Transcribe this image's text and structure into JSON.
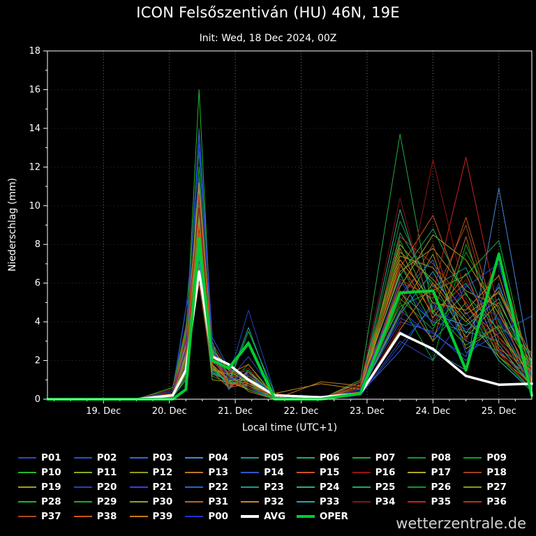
{
  "watermark": "wetterzentrale.de",
  "chart_data": {
    "type": "line",
    "title": "ICON Felsőszentiván (HU) 46N, 19E",
    "subtitle": "Init: Wed, 18 Dec 2024, 00Z",
    "xlabel": "Local time (UTC+1)",
    "ylabel": "Niederschlag (mm)",
    "ylim": [
      0,
      18
    ],
    "yticks": [
      0,
      2,
      4,
      6,
      8,
      10,
      12,
      14,
      16,
      18
    ],
    "x_domain_days": [
      0.15,
      7.5
    ],
    "xticks": [
      {
        "day": 1,
        "label": "19. Dec"
      },
      {
        "day": 2,
        "label": "20. Dec"
      },
      {
        "day": 3,
        "label": "21. Dec"
      },
      {
        "day": 4,
        "label": "22. Dec"
      },
      {
        "day": 5,
        "label": "23. Dec"
      },
      {
        "day": 6,
        "label": "24. Dec"
      },
      {
        "day": 7,
        "label": "25. Dec"
      }
    ],
    "grid": true,
    "legend_position": "bottom",
    "x_days": [
      0.15,
      1.5,
      2.05,
      2.25,
      2.45,
      2.65,
      2.9,
      3.2,
      3.6,
      4.3,
      4.9,
      5.5,
      6.0,
      6.5,
      7.0,
      7.5
    ],
    "series": [
      {
        "name": "P01",
        "color": "#3344bb",
        "width": 1,
        "values": [
          0,
          0,
          0.2,
          2.5,
          9.0,
          2.0,
          1.0,
          2.2,
          0.3,
          0,
          0.2,
          3.0,
          2.0,
          4.5,
          2.0,
          0.5
        ]
      },
      {
        "name": "P02",
        "color": "#2255cc",
        "width": 1,
        "values": [
          0,
          0,
          0.5,
          4.7,
          7.5,
          1.5,
          0.8,
          1.0,
          0.2,
          0,
          0.5,
          4.0,
          3.5,
          2.0,
          4.5,
          1.0
        ]
      },
      {
        "name": "P03",
        "color": "#3366dd",
        "width": 1,
        "values": [
          0,
          0,
          0.3,
          3.0,
          13.8,
          2.5,
          1.2,
          0.5,
          0,
          0,
          0.3,
          2.5,
          5.0,
          3.0,
          2.5,
          0.8
        ]
      },
      {
        "name": "P04",
        "color": "#4488dd",
        "width": 1,
        "values": [
          0,
          0,
          0.2,
          2.0,
          10.5,
          3.0,
          0.5,
          1.5,
          0.1,
          0,
          0.4,
          3.5,
          2.5,
          1.5,
          10.9,
          1.5
        ]
      },
      {
        "name": "P05",
        "color": "#229999",
        "width": 1,
        "values": [
          0,
          0,
          0.4,
          1.5,
          8.0,
          2.2,
          1.5,
          2.8,
          0.2,
          0,
          0.6,
          5.5,
          4.0,
          3.5,
          3.0,
          1.0
        ]
      },
      {
        "name": "P06",
        "color": "#22aa77",
        "width": 1,
        "values": [
          0,
          0,
          0.1,
          1.0,
          9.5,
          1.8,
          0.6,
          1.2,
          0.3,
          0,
          0.8,
          6.5,
          3.0,
          5.0,
          2.0,
          0.4
        ]
      },
      {
        "name": "P07",
        "color": "#22aa44",
        "width": 1,
        "values": [
          0,
          0,
          0.3,
          2.2,
          11.0,
          2.8,
          1.0,
          0.6,
          0.1,
          0,
          1.0,
          13.7,
          4.5,
          6.0,
          3.5,
          1.2
        ]
      },
      {
        "name": "P08",
        "color": "#119933",
        "width": 1,
        "values": [
          0,
          0,
          0.5,
          3.5,
          6.5,
          1.2,
          0.8,
          1.8,
          0.2,
          0,
          0.5,
          9.2,
          5.5,
          4.0,
          2.8,
          0.6
        ]
      },
      {
        "name": "P09",
        "color": "#00aa22",
        "width": 1,
        "values": [
          0,
          0,
          0.2,
          1.8,
          12.0,
          2.0,
          1.4,
          0.9,
          0,
          0,
          0.3,
          5.0,
          2.0,
          8.0,
          4.0,
          0.9
        ]
      },
      {
        "name": "P10",
        "color": "#22bb22",
        "width": 1,
        "values": [
          0,
          0,
          0.4,
          2.8,
          16.0,
          2.4,
          0.7,
          1.1,
          0.2,
          0,
          0.6,
          7.0,
          3.8,
          5.5,
          2.2,
          0.5
        ]
      },
      {
        "name": "P11",
        "color": "#88aa22",
        "width": 1,
        "values": [
          0,
          0,
          0.3,
          2.0,
          8.5,
          1.6,
          1.1,
          0.7,
          0.1,
          0,
          0.9,
          8.0,
          6.0,
          3.2,
          5.0,
          1.8
        ]
      },
      {
        "name": "P12",
        "color": "#999911",
        "width": 1,
        "values": [
          0,
          0,
          0.2,
          1.2,
          7.0,
          1.0,
          0.9,
          1.4,
          0.3,
          0,
          0.4,
          4.5,
          7.5,
          2.6,
          3.8,
          0.7
        ]
      },
      {
        "name": "P13",
        "color": "#bb7722",
        "width": 1,
        "values": [
          0,
          0,
          0.6,
          3.2,
          9.8,
          2.6,
          1.3,
          0.4,
          0,
          0.9,
          0.7,
          7.8,
          4.2,
          6.5,
          2.4,
          1.1
        ]
      },
      {
        "name": "P14",
        "color": "#3355cc",
        "width": 1,
        "values": [
          0,
          0,
          0.3,
          2.4,
          14.0,
          3.2,
          1.6,
          1.0,
          0.2,
          0,
          0.5,
          4.2,
          3.4,
          2.2,
          6.0,
          0.8
        ]
      },
      {
        "name": "P15",
        "color": "#cc5522",
        "width": 1,
        "values": [
          0,
          0,
          0.2,
          1.6,
          6.0,
          1.4,
          0.6,
          0.8,
          0.1,
          0,
          0.8,
          6.8,
          9.5,
          4.8,
          3.2,
          1.4
        ]
      },
      {
        "name": "P16",
        "color": "#991111",
        "width": 1,
        "values": [
          0,
          0,
          0.4,
          2.6,
          8.8,
          2.1,
          1.2,
          1.6,
          0.3,
          0,
          0.3,
          3.8,
          12.4,
          5.2,
          2.6,
          0.6
        ]
      },
      {
        "name": "P17",
        "color": "#aaaa22",
        "width": 1,
        "values": [
          0,
          0,
          0.1,
          1.4,
          7.8,
          1.8,
          0.9,
          0.5,
          0,
          0,
          0.6,
          5.8,
          8.5,
          7.2,
          4.4,
          1.6
        ]
      },
      {
        "name": "P18",
        "color": "#994422",
        "width": 1,
        "values": [
          0,
          0,
          0.5,
          3.8,
          10.2,
          2.9,
          1.5,
          1.2,
          0.2,
          0,
          0.4,
          6.2,
          5.2,
          9.0,
          3.0,
          0.9
        ]
      },
      {
        "name": "P19",
        "color": "#aa9922",
        "width": 1,
        "values": [
          0,
          0,
          0.3,
          2.1,
          9.2,
          1.7,
          0.8,
          0.9,
          0.1,
          0,
          0.7,
          7.4,
          6.8,
          4.4,
          5.5,
          2.0
        ]
      },
      {
        "name": "P20",
        "color": "#2244bb",
        "width": 1,
        "values": [
          0,
          0,
          0.2,
          4.6,
          11.5,
          2.3,
          1.1,
          4.6,
          0.3,
          0,
          0.2,
          2.8,
          4.8,
          3.6,
          4.2,
          1.2
        ]
      },
      {
        "name": "P21",
        "color": "#3344dd",
        "width": 1,
        "values": [
          0,
          0,
          0.4,
          2.9,
          7.2,
          1.9,
          1.4,
          0.6,
          0,
          0,
          0.5,
          4.6,
          3.2,
          5.8,
          7.0,
          0.4
        ]
      },
      {
        "name": "P22",
        "color": "#2266cc",
        "width": 1,
        "values": [
          0,
          0,
          0.3,
          1.7,
          8.4,
          2.7,
          0.7,
          1.3,
          0.2,
          0,
          0.9,
          5.4,
          7.2,
          2.4,
          3.4,
          4.3
        ]
      },
      {
        "name": "P23",
        "color": "#229988",
        "width": 1,
        "values": [
          0,
          0,
          0.1,
          1.1,
          6.8,
          1.3,
          1.0,
          0.8,
          0.1,
          0,
          0.4,
          8.6,
          5.8,
          6.8,
          2.8,
          0.7
        ]
      },
      {
        "name": "P24",
        "color": "#33aa88",
        "width": 1,
        "values": [
          0,
          0,
          0.5,
          2.3,
          10.8,
          2.5,
          1.7,
          1.1,
          0.3,
          0,
          0.6,
          9.8,
          4.4,
          3.8,
          5.2,
          1.3
        ]
      },
      {
        "name": "P25",
        "color": "#22aa55",
        "width": 1,
        "values": [
          0,
          0,
          0.2,
          1.9,
          9.6,
          1.5,
          0.9,
          0.7,
          0,
          0,
          0.8,
          6.4,
          8.8,
          5.4,
          3.6,
          0.5
        ]
      },
      {
        "name": "P26",
        "color": "#119922",
        "width": 1,
        "values": [
          0,
          0,
          0.4,
          3.4,
          12.8,
          2.8,
          1.2,
          1.5,
          0.2,
          0,
          0.3,
          5.2,
          3.6,
          7.6,
          4.6,
          1.7
        ]
      },
      {
        "name": "P27",
        "color": "#889911",
        "width": 1,
        "values": [
          0,
          0,
          0.3,
          2.7,
          8.2,
          2.0,
          1.6,
          0.9,
          0.1,
          0,
          0.5,
          7.6,
          6.2,
          4.2,
          2.2,
          0.8
        ]
      },
      {
        "name": "P28",
        "color": "#11bb33",
        "width": 1,
        "values": [
          0,
          0,
          0.2,
          1.3,
          10.0,
          1.6,
          0.8,
          3.5,
          0.3,
          0,
          0.7,
          4.8,
          5.6,
          6.4,
          8.2,
          1.0
        ]
      },
      {
        "name": "P29",
        "color": "#22aa22",
        "width": 1,
        "values": [
          0,
          0,
          0.6,
          3.6,
          7.6,
          2.2,
          1.3,
          0.5,
          0,
          0,
          0.4,
          8.2,
          4.6,
          2.8,
          3.8,
          2.4
        ]
      },
      {
        "name": "P30",
        "color": "#999933",
        "width": 1,
        "values": [
          0,
          0,
          0.3,
          2.2,
          9.4,
          1.8,
          1.0,
          1.0,
          0.2,
          0,
          0.6,
          6.6,
          7.8,
          5.6,
          4.8,
          0.6
        ]
      },
      {
        "name": "P31",
        "color": "#bb6622",
        "width": 1,
        "values": [
          0,
          0,
          0.1,
          1.5,
          8.6,
          2.4,
          0.6,
          1.4,
          0.1,
          0,
          0.9,
          5.6,
          3.0,
          8.4,
          2.6,
          1.5
        ]
      },
      {
        "name": "P32",
        "color": "#cc8822",
        "width": 1,
        "values": [
          0,
          0,
          0.4,
          2.8,
          11.2,
          2.6,
          1.5,
          0.8,
          0.3,
          0.8,
          0.5,
          7.2,
          5.0,
          4.6,
          6.4,
          0.9
        ]
      },
      {
        "name": "P33",
        "color": "#22aaaa",
        "width": 1,
        "values": [
          0,
          0,
          0.2,
          1.6,
          7.4,
          1.4,
          0.9,
          3.7,
          0,
          0,
          0.3,
          4.4,
          6.6,
          3.4,
          5.8,
          1.9
        ]
      },
      {
        "name": "P34",
        "color": "#881122",
        "width": 1,
        "values": [
          0,
          0,
          0.5,
          3.1,
          9.9,
          2.1,
          1.1,
          0.6,
          0.2,
          0,
          0.8,
          10.4,
          4.0,
          6.2,
          3.2,
          0.7
        ]
      },
      {
        "name": "P35",
        "color": "#cc2222",
        "width": 1,
        "values": [
          0,
          0,
          0.3,
          2.5,
          8.1,
          1.9,
          1.4,
          3.0,
          0.1,
          0,
          0.4,
          6.0,
          5.4,
          12.5,
          4.4,
          1.1
        ]
      },
      {
        "name": "P36",
        "color": "#bb3311",
        "width": 1,
        "values": [
          0,
          0,
          0.2,
          1.8,
          10.6,
          2.3,
          0.7,
          0.9,
          0.3,
          0,
          0.6,
          8.4,
          7.0,
          5.0,
          2.4,
          0.5
        ]
      },
      {
        "name": "P37",
        "color": "#aa4422",
        "width": 1,
        "values": [
          0,
          0,
          0.4,
          2.0,
          6.4,
          1.7,
          1.2,
          1.1,
          0,
          0,
          0.5,
          5.0,
          8.0,
          3.0,
          7.4,
          1.3
        ]
      },
      {
        "name": "P38",
        "color": "#cc5511",
        "width": 1,
        "values": [
          0,
          0,
          0.3,
          3.3,
          9.0,
          2.5,
          0.8,
          0.7,
          0.2,
          0,
          0.7,
          7.0,
          4.4,
          9.4,
          3.6,
          0.8
        ]
      },
      {
        "name": "P39",
        "color": "#cc7711",
        "width": 1,
        "values": [
          0,
          0,
          0.2,
          1.4,
          7.9,
          1.5,
          1.3,
          1.8,
          0.1,
          0,
          0.3,
          3.6,
          6.0,
          4.0,
          5.6,
          2.2
        ]
      },
      {
        "name": "P00",
        "color": "#2233cc",
        "width": 1,
        "values": [
          0,
          0,
          0.4,
          2.6,
          13.2,
          2.7,
          1.0,
          1.3,
          0.2,
          0,
          0.5,
          6.1,
          3.9,
          5.9,
          4.1,
          0.6
        ]
      },
      {
        "name": "AVG",
        "color": "#ffffff",
        "width": 3.5,
        "values": [
          0,
          0,
          0.2,
          1.5,
          6.6,
          2.2,
          1.8,
          1.0,
          0.2,
          0.1,
          0.3,
          3.4,
          2.6,
          1.2,
          0.75,
          0.8
        ]
      },
      {
        "name": "OPER",
        "color": "#00cc33",
        "width": 4,
        "values": [
          0,
          0,
          0,
          0.5,
          8.3,
          2.0,
          1.6,
          2.9,
          0,
          0,
          0.3,
          5.5,
          5.6,
          1.5,
          7.5,
          0.2
        ]
      }
    ]
  }
}
